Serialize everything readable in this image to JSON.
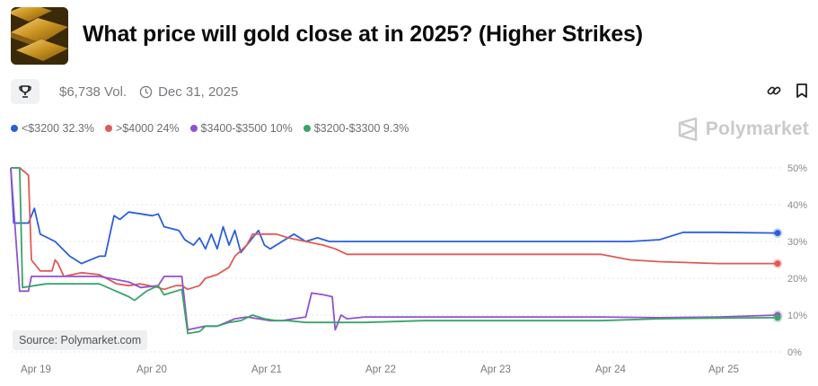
{
  "header": {
    "title": "What price will gold close at in 2025? (Higher Strikes)",
    "thumbnail_icon": "gold-bars-image"
  },
  "meta": {
    "volume": "$6,738 Vol.",
    "end_date": "Dec 31, 2025",
    "trophy_icon": "trophy-icon",
    "clock_icon": "clock-icon"
  },
  "actions": {
    "link_icon": "link-icon",
    "bookmark_icon": "bookmark-icon"
  },
  "brand": {
    "name": "Polymarket"
  },
  "source": "Source: Polymarket.com",
  "legend": [
    {
      "label": "<$3200 32.3%",
      "color": "#2b5fd9"
    },
    {
      "label": ">$4000 24%",
      "color": "#e05a55"
    },
    {
      "label": "$3400-$3500 10%",
      "color": "#9351d1"
    },
    {
      "label": "$3200-$3300 9.3%",
      "color": "#3aa469"
    }
  ],
  "chart_data": {
    "type": "line",
    "x_ticks": [
      "Apr 19",
      "Apr 20",
      "Apr 21",
      "Apr 22",
      "Apr 23",
      "Apr 24",
      "Apr 25"
    ],
    "y_ticks": [
      "50%",
      "40%",
      "30%",
      "20%",
      "10%",
      "0%"
    ],
    "ylim": [
      0,
      50
    ],
    "grid": true,
    "series": [
      {
        "name": "<$3200",
        "color": "#2b5fd9",
        "last": 32.3,
        "points": [
          [
            0,
            50
          ],
          [
            0.05,
            35
          ],
          [
            0.3,
            35
          ],
          [
            0.4,
            39
          ],
          [
            0.5,
            32
          ],
          [
            0.75,
            30
          ],
          [
            1.0,
            26
          ],
          [
            1.2,
            24
          ],
          [
            1.5,
            26
          ],
          [
            1.6,
            26
          ],
          [
            1.75,
            37
          ],
          [
            1.85,
            36
          ],
          [
            2.0,
            38
          ],
          [
            2.4,
            37
          ],
          [
            2.5,
            37.5
          ],
          [
            2.6,
            34
          ],
          [
            2.85,
            33
          ],
          [
            2.95,
            30.5
          ],
          [
            3.1,
            29
          ],
          [
            3.2,
            31
          ],
          [
            3.3,
            28
          ],
          [
            3.4,
            32
          ],
          [
            3.5,
            28
          ],
          [
            3.6,
            34
          ],
          [
            3.7,
            29
          ],
          [
            3.8,
            33
          ],
          [
            3.9,
            27
          ],
          [
            4.0,
            29
          ],
          [
            4.2,
            33
          ],
          [
            4.3,
            29
          ],
          [
            4.4,
            28
          ],
          [
            4.6,
            30
          ],
          [
            4.8,
            32
          ],
          [
            5.0,
            30
          ],
          [
            5.2,
            31
          ],
          [
            5.4,
            30
          ],
          [
            5.6,
            30
          ],
          [
            5.8,
            30
          ],
          [
            6.0,
            30
          ],
          [
            7.0,
            30
          ],
          [
            8.0,
            30
          ],
          [
            9.0,
            30
          ],
          [
            10.0,
            30
          ],
          [
            10.5,
            30
          ],
          [
            11.0,
            30.5
          ],
          [
            11.4,
            32.5
          ],
          [
            12.0,
            32.5
          ],
          [
            13.0,
            32.3
          ]
        ]
      },
      {
        "name": ">$4000",
        "color": "#e05a55",
        "last": 24,
        "points": [
          [
            0,
            50
          ],
          [
            0.15,
            50
          ],
          [
            0.3,
            48
          ],
          [
            0.35,
            25
          ],
          [
            0.5,
            22
          ],
          [
            0.7,
            22
          ],
          [
            0.75,
            25
          ],
          [
            0.8,
            24
          ],
          [
            0.9,
            20.5
          ],
          [
            1.2,
            21.5
          ],
          [
            1.5,
            21
          ],
          [
            1.8,
            18.5
          ],
          [
            2.0,
            18
          ],
          [
            2.2,
            18.5
          ],
          [
            2.5,
            17.5
          ],
          [
            2.6,
            17
          ],
          [
            2.8,
            18
          ],
          [
            2.9,
            18
          ],
          [
            3.0,
            17
          ],
          [
            3.2,
            18
          ],
          [
            3.3,
            20
          ],
          [
            3.5,
            21
          ],
          [
            3.7,
            23
          ],
          [
            3.8,
            26
          ],
          [
            4.0,
            29
          ],
          [
            4.1,
            32
          ],
          [
            4.3,
            32
          ],
          [
            4.5,
            32
          ],
          [
            4.7,
            31
          ],
          [
            5.0,
            30
          ],
          [
            5.3,
            29
          ],
          [
            5.5,
            28
          ],
          [
            5.7,
            26.5
          ],
          [
            6.0,
            26.5
          ],
          [
            7.0,
            26.5
          ],
          [
            8.0,
            26.5
          ],
          [
            9.0,
            26.5
          ],
          [
            10.0,
            26.5
          ],
          [
            10.5,
            25
          ],
          [
            11.0,
            24.5
          ],
          [
            12.0,
            24
          ],
          [
            13.0,
            24
          ]
        ]
      },
      {
        "name": "$3400-$3500",
        "color": "#9351d1",
        "last": 10,
        "points": [
          [
            0,
            50
          ],
          [
            0.15,
            16.5
          ],
          [
            0.3,
            16.5
          ],
          [
            0.35,
            20.5
          ],
          [
            0.6,
            20.5
          ],
          [
            1.0,
            20.5
          ],
          [
            1.5,
            20.5
          ],
          [
            2.0,
            19
          ],
          [
            2.2,
            17.5
          ],
          [
            2.5,
            18
          ],
          [
            2.6,
            20.5
          ],
          [
            2.9,
            20.5
          ],
          [
            3.0,
            6
          ],
          [
            3.3,
            7
          ],
          [
            3.5,
            7
          ],
          [
            3.8,
            9
          ],
          [
            4.0,
            9.5
          ],
          [
            4.2,
            9
          ],
          [
            4.4,
            8.5
          ],
          [
            4.6,
            8.5
          ],
          [
            4.8,
            9
          ],
          [
            5.0,
            9.5
          ],
          [
            5.1,
            16
          ],
          [
            5.3,
            15.5
          ],
          [
            5.45,
            15
          ],
          [
            5.5,
            6
          ],
          [
            5.6,
            10
          ],
          [
            5.7,
            9
          ],
          [
            6.0,
            9.5
          ],
          [
            7.0,
            9.5
          ],
          [
            8.0,
            9.5
          ],
          [
            9.0,
            9.5
          ],
          [
            10.0,
            9.5
          ],
          [
            11.0,
            9.3
          ],
          [
            12.0,
            9.5
          ],
          [
            13.0,
            10
          ]
        ]
      },
      {
        "name": "$3200-$3300",
        "color": "#3aa469",
        "last": 9.3,
        "points": [
          [
            0,
            50
          ],
          [
            0.15,
            50
          ],
          [
            0.2,
            17.5
          ],
          [
            0.4,
            18
          ],
          [
            0.6,
            18.5
          ],
          [
            1.0,
            18.5
          ],
          [
            1.5,
            18.5
          ],
          [
            2.0,
            15
          ],
          [
            2.1,
            14
          ],
          [
            2.3,
            16.5
          ],
          [
            2.5,
            18
          ],
          [
            2.6,
            15.5
          ],
          [
            2.9,
            17
          ],
          [
            3.0,
            5
          ],
          [
            3.2,
            5.5
          ],
          [
            3.3,
            7
          ],
          [
            3.5,
            7
          ],
          [
            3.7,
            8
          ],
          [
            3.9,
            8.5
          ],
          [
            4.1,
            10
          ],
          [
            4.3,
            9
          ],
          [
            4.5,
            8.5
          ],
          [
            4.7,
            8.5
          ],
          [
            5.0,
            8
          ],
          [
            5.5,
            8
          ],
          [
            6.0,
            8
          ],
          [
            7.0,
            8.5
          ],
          [
            8.0,
            8.5
          ],
          [
            9.0,
            8.5
          ],
          [
            10.0,
            8.5
          ],
          [
            11.0,
            9
          ],
          [
            12.0,
            9.2
          ],
          [
            13.0,
            9.3
          ]
        ]
      }
    ]
  }
}
